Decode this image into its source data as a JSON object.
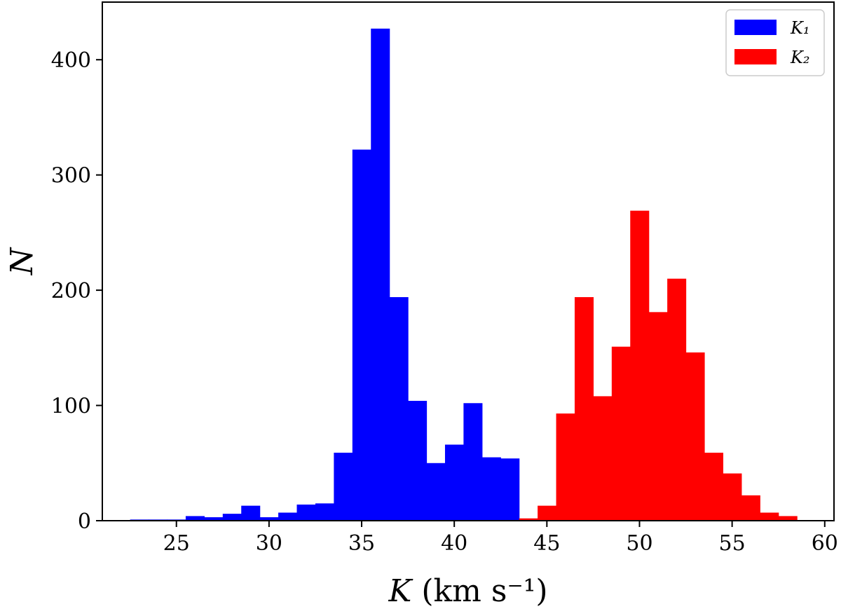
{
  "chart_data": {
    "type": "bar",
    "subtype": "histogram",
    "title": "",
    "xlabel": "K (km s⁻¹)",
    "ylabel": "N",
    "xlim": [
      21.0,
      60.5
    ],
    "ylim": [
      0,
      450
    ],
    "xticks": [
      25,
      30,
      35,
      40,
      45,
      50,
      55,
      60
    ],
    "yticks": [
      0,
      100,
      200,
      300,
      400
    ],
    "grid": false,
    "legend_position": "top-right",
    "bin_width": 1.0,
    "series": [
      {
        "name": "K₁",
        "color": "#0000ff",
        "bins_start": [
          22.5,
          23.5,
          24.5,
          25.5,
          26.5,
          27.5,
          28.5,
          29.5,
          30.5,
          31.5,
          32.5,
          33.5,
          34.5,
          35.5,
          36.5,
          37.5,
          38.5,
          39.5,
          40.5,
          41.5,
          42.5
        ],
        "values": [
          1,
          1,
          1,
          4,
          3,
          6,
          13,
          3,
          7,
          14,
          15,
          59,
          322,
          427,
          194,
          104,
          50,
          66,
          102,
          55,
          54
        ]
      },
      {
        "name": "K₂",
        "color": "#ff0000",
        "bins_start": [
          43.5,
          44.5,
          45.5,
          46.5,
          47.5,
          48.5,
          49.5,
          50.5,
          51.5,
          52.5,
          53.5,
          54.5,
          55.5,
          56.5,
          57.5
        ],
        "values": [
          2,
          13,
          93,
          194,
          108,
          151,
          269,
          181,
          210,
          146,
          59,
          41,
          22,
          7,
          4
        ]
      }
    ]
  }
}
